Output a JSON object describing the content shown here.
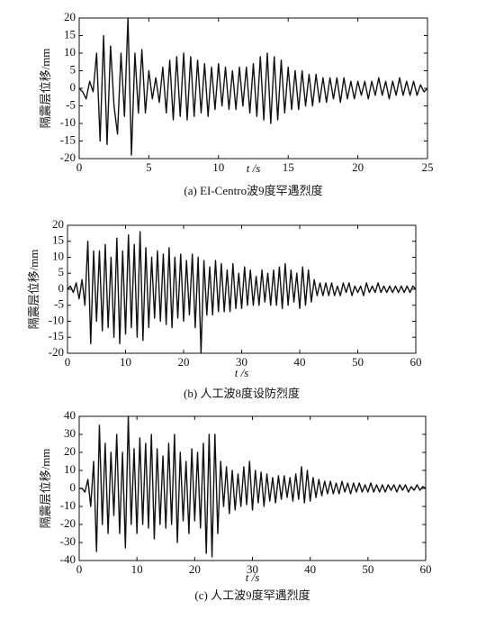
{
  "chart_data": [
    {
      "type": "line",
      "title": "(a) EI-Centro波9度罕遇烈度",
      "xlabel": "t /s",
      "ylabel": "隔震层位移/mm",
      "xlim": [
        0,
        25
      ],
      "ylim": [
        -20,
        20
      ],
      "xticks": [
        0,
        5,
        10,
        15,
        20,
        25
      ],
      "yticks": [
        -20,
        -15,
        -10,
        -5,
        0,
        5,
        10,
        15,
        20
      ],
      "x": [
        0,
        0.25,
        0.5,
        0.75,
        1,
        1.25,
        1.5,
        1.75,
        2,
        2.25,
        2.5,
        2.75,
        3,
        3.25,
        3.5,
        3.75,
        4,
        4.25,
        4.5,
        4.75,
        5,
        5.25,
        5.5,
        5.75,
        6,
        6.25,
        6.5,
        6.75,
        7,
        7.25,
        7.5,
        7.75,
        8,
        8.25,
        8.5,
        8.75,
        9,
        9.25,
        9.5,
        9.75,
        10,
        10.25,
        10.5,
        10.75,
        11,
        11.25,
        11.5,
        11.75,
        12,
        12.25,
        12.5,
        12.75,
        13,
        13.25,
        13.5,
        13.75,
        14,
        14.25,
        14.5,
        14.75,
        15,
        15.25,
        15.5,
        15.75,
        16,
        16.25,
        16.5,
        16.75,
        17,
        17.25,
        17.5,
        17.75,
        18,
        18.25,
        18.5,
        18.75,
        19,
        19.25,
        19.5,
        19.75,
        20,
        20.25,
        20.5,
        20.75,
        21,
        21.25,
        21.5,
        21.75,
        22,
        22.25,
        22.5,
        22.75,
        23,
        23.25,
        23.5,
        23.75,
        24,
        24.25,
        24.5,
        24.75,
        25
      ],
      "series": [
        {
          "color": "#111111",
          "values": [
            0,
            -1,
            -3,
            2,
            -1,
            10,
            -15,
            15,
            -16,
            12,
            -5,
            -13,
            10,
            -8,
            20,
            -19,
            10,
            -7,
            11,
            -7,
            5,
            -3,
            3,
            -4,
            6,
            -7,
            8,
            -9,
            9,
            -8,
            10,
            -9,
            9,
            -8,
            8,
            -7,
            7,
            -8,
            6,
            -6,
            7,
            -5,
            6,
            -6,
            5,
            -6,
            6,
            -5,
            6,
            -7,
            7,
            -8,
            9,
            -9,
            10,
            -10,
            9,
            -9,
            8,
            -7,
            6,
            -6,
            5,
            -6,
            5,
            -5,
            4,
            -5,
            4,
            -4,
            3,
            -4,
            3,
            -3,
            3,
            -4,
            3,
            -3,
            2,
            -3,
            2,
            -2,
            2,
            -3,
            2,
            -2,
            3,
            -2,
            2,
            -3,
            2,
            -2,
            3,
            -2,
            2,
            -2,
            2,
            -2,
            1,
            -1,
            0
          ]
        }
      ]
    },
    {
      "type": "line",
      "title": "(b) 人工波8度设防烈度",
      "xlabel": "t /s",
      "ylabel": "隔震层位移/mm",
      "xlim": [
        0,
        60
      ],
      "ylim": [
        -20,
        20
      ],
      "xticks": [
        0,
        10,
        20,
        30,
        40,
        50,
        60
      ],
      "yticks": [
        -20,
        -15,
        -10,
        -5,
        0,
        5,
        10,
        15,
        20
      ],
      "x": [
        0,
        0.5,
        1,
        1.5,
        2,
        2.5,
        3,
        3.5,
        4,
        4.5,
        5,
        5.5,
        6,
        6.5,
        7,
        7.5,
        8,
        8.5,
        9,
        9.5,
        10,
        10.5,
        11,
        11.5,
        12,
        12.5,
        13,
        13.5,
        14,
        14.5,
        15,
        15.5,
        16,
        16.5,
        17,
        17.5,
        18,
        18.5,
        19,
        19.5,
        20,
        20.5,
        21,
        21.5,
        22,
        22.5,
        23,
        23.5,
        24,
        24.5,
        25,
        25.5,
        26,
        26.5,
        27,
        27.5,
        28,
        28.5,
        29,
        29.5,
        30,
        30.5,
        31,
        31.5,
        32,
        32.5,
        33,
        33.5,
        34,
        34.5,
        35,
        35.5,
        36,
        36.5,
        37,
        37.5,
        38,
        38.5,
        39,
        39.5,
        40,
        40.5,
        41,
        41.5,
        42,
        42.5,
        43,
        43.5,
        44,
        44.5,
        45,
        45.5,
        46,
        46.5,
        47,
        47.5,
        48,
        48.5,
        49,
        49.5,
        50,
        50.5,
        51,
        51.5,
        52,
        52.5,
        53,
        53.5,
        54,
        54.5,
        55,
        55.5,
        56,
        56.5,
        57,
        57.5,
        58,
        58.5,
        59,
        59.5,
        60
      ],
      "series": [
        {
          "color": "#111111",
          "values": [
            0,
            1,
            -1,
            2,
            -3,
            3,
            -5,
            15,
            -17,
            12,
            -10,
            12,
            -13,
            14,
            -12,
            10,
            -15,
            16,
            -17,
            12,
            -14,
            17,
            -12,
            14,
            -15,
            18,
            -16,
            13,
            -12,
            10,
            -9,
            12,
            -10,
            11,
            -11,
            13,
            -12,
            10,
            -9,
            11,
            -10,
            9,
            -8,
            11,
            -12,
            10,
            -20,
            9,
            -8,
            7,
            -8,
            9,
            -7,
            8,
            -7,
            6,
            -7,
            8,
            -6,
            5,
            -6,
            7,
            -5,
            6,
            -5,
            4,
            -5,
            6,
            -4,
            5,
            -5,
            6,
            -5,
            7,
            -6,
            8,
            -5,
            6,
            -4,
            5,
            -6,
            7,
            -5,
            6,
            -4,
            3,
            -2,
            2,
            -2,
            2,
            -2,
            2,
            -2,
            1,
            -2,
            2,
            -1,
            2,
            -2,
            1,
            -1,
            1,
            -2,
            2,
            -1,
            1,
            -1,
            2,
            -1,
            1,
            -1,
            1,
            -1,
            1,
            -1,
            1,
            -1,
            1,
            -1,
            1,
            0
          ]
        }
      ]
    },
    {
      "type": "line",
      "title": "(c) 人工波9度罕遇烈度",
      "xlabel": "t /s",
      "ylabel": "隔震层位移/mm",
      "xlim": [
        0,
        60
      ],
      "ylim": [
        -40,
        40
      ],
      "xticks": [
        0,
        10,
        20,
        30,
        40,
        50,
        60
      ],
      "yticks": [
        -40,
        -30,
        -20,
        -10,
        0,
        10,
        20,
        30,
        40
      ],
      "x": [
        0,
        0.5,
        1,
        1.5,
        2,
        2.5,
        3,
        3.5,
        4,
        4.5,
        5,
        5.5,
        6,
        6.5,
        7,
        7.5,
        8,
        8.5,
        9,
        9.5,
        10,
        10.5,
        11,
        11.5,
        12,
        12.5,
        13,
        13.5,
        14,
        14.5,
        15,
        15.5,
        16,
        16.5,
        17,
        17.5,
        18,
        18.5,
        19,
        19.5,
        20,
        20.5,
        21,
        21.5,
        22,
        22.5,
        23,
        23.5,
        24,
        24.5,
        25,
        25.5,
        26,
        26.5,
        27,
        27.5,
        28,
        28.5,
        29,
        29.5,
        30,
        30.5,
        31,
        31.5,
        32,
        32.5,
        33,
        33.5,
        34,
        34.5,
        35,
        35.5,
        36,
        36.5,
        37,
        37.5,
        38,
        38.5,
        39,
        39.5,
        40,
        40.5,
        41,
        41.5,
        42,
        42.5,
        43,
        43.5,
        44,
        44.5,
        45,
        45.5,
        46,
        46.5,
        47,
        47.5,
        48,
        48.5,
        49,
        49.5,
        50,
        50.5,
        51,
        51.5,
        52,
        52.5,
        53,
        53.5,
        54,
        54.5,
        55,
        55.5,
        56,
        56.5,
        57,
        57.5,
        58,
        58.5,
        59,
        59.5,
        60
      ],
      "series": [
        {
          "color": "#111111",
          "values": [
            0,
            0,
            -2,
            5,
            -10,
            15,
            -35,
            35,
            -20,
            25,
            -25,
            20,
            -15,
            30,
            -25,
            20,
            -33,
            40,
            -20,
            22,
            -25,
            28,
            -20,
            25,
            -22,
            30,
            -28,
            22,
            -20,
            18,
            -22,
            25,
            -20,
            30,
            -30,
            20,
            -18,
            15,
            -25,
            22,
            -18,
            20,
            -22,
            25,
            -36,
            30,
            -38,
            30,
            -25,
            15,
            -10,
            12,
            -14,
            10,
            -12,
            8,
            -10,
            12,
            -9,
            15,
            -12,
            10,
            -8,
            9,
            -10,
            8,
            -7,
            6,
            -8,
            7,
            -6,
            7,
            -5,
            6,
            -7,
            8,
            -6,
            12,
            -8,
            10,
            -7,
            6,
            -5,
            5,
            -4,
            4,
            -3,
            4,
            -3,
            3,
            -3,
            4,
            -2,
            3,
            -3,
            3,
            -2,
            3,
            -2,
            2,
            -2,
            3,
            -2,
            2,
            -2,
            2,
            -2,
            2,
            -1,
            2,
            -2,
            2,
            -1,
            2,
            -2,
            1,
            -1,
            2,
            -1,
            1,
            0
          ]
        }
      ]
    }
  ]
}
